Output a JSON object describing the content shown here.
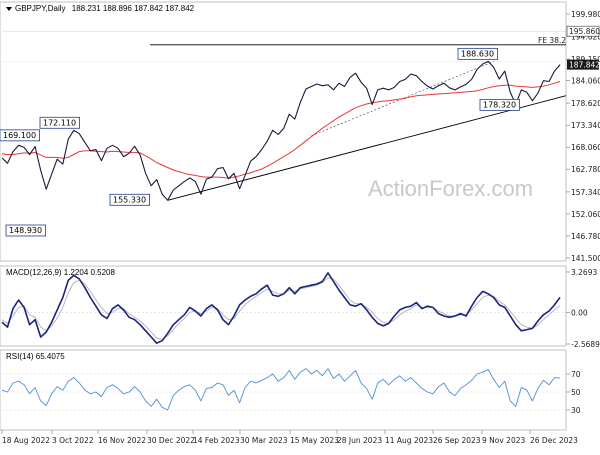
{
  "header": {
    "symbol": "GBPJPY,Daily",
    "ohlc": "188.231 188.896 187.842 187.842"
  },
  "watermark": "ActionForex.com",
  "colors": {
    "price": "#1a1a3a",
    "ema": "#e53935",
    "trend": "#000000",
    "fe": "#000000",
    "macd": "#1a237e",
    "signal": "#b0b0b0",
    "rsi": "#4e8fd6",
    "label_border": "#1f3f8f",
    "last_price_bg": "#1a1a1a"
  },
  "x_ticks": [
    "18 Aug 2022",
    "3 Oct 2022",
    "16 Nov 2022",
    "30 Dec 2022",
    "14 Feb 2023",
    "30 Mar 2023",
    "15 May 2023",
    "28 Jun 2023",
    "11 Aug 2023",
    "26 Sep 2023",
    "9 Nov 2023",
    "26 Dec 2023"
  ],
  "price_axis": {
    "ticks": [
      "199.980",
      "194.620",
      "189.150",
      "184.060",
      "178.620",
      "173.340",
      "168.060",
      "162.780",
      "157.340",
      "152.060",
      "146.780",
      "141.500"
    ],
    "last_price_label": "187.842",
    "resistance_label": "195.860"
  },
  "annotations": {
    "fe_label": "FE 38.2",
    "labels": [
      "188.630",
      "178.320",
      "172.110",
      "169.100",
      "155.330",
      "148.930"
    ]
  },
  "macd_panel": {
    "label": "MACD(12,26,9) 1.2204 0.5208",
    "ticks": [
      "3.2693",
      "0.00",
      "-2.5689"
    ]
  },
  "rsi_panel": {
    "label": "RSI(14) 65.4075",
    "ticks": [
      "70",
      "50",
      "30"
    ]
  },
  "chart_data": {
    "type": "line",
    "title": "GBPJPY,Daily",
    "x_labels": [
      "18 Aug 2022",
      "3 Oct 2022",
      "16 Nov 2022",
      "30 Dec 2022",
      "14 Feb 2023",
      "30 Mar 2023",
      "15 May 2023",
      "28 Jun 2023",
      "11 Aug 2023",
      "26 Sep 2023",
      "9 Nov 2023",
      "26 Dec 2023"
    ],
    "ylim": [
      141.5,
      199.98
    ],
    "series": [
      {
        "values": [
          165.5,
          164.2,
          167.0,
          168.5,
          168.0,
          166.3,
          168.2,
          162.5,
          158.0,
          161.6,
          165.2,
          164.0,
          170.0,
          172.1,
          171.3,
          169.2,
          167.2,
          167.5,
          164.8,
          167.8,
          168.5,
          167.8,
          165.8,
          166.6,
          168.3,
          166.2,
          161.8,
          158.8,
          160.3,
          156.8,
          155.33,
          157.8,
          158.8,
          159.8,
          160.7,
          159.8,
          156.8,
          160.4,
          160.9,
          162.9,
          163.2,
          160.5,
          161.8,
          158.1,
          161.3,
          164.7,
          165.8,
          167.5,
          169.5,
          172.1,
          171.1,
          172.6,
          176.0,
          174.8,
          178.8,
          182.0,
          182.6,
          183.2,
          182.8,
          183.0,
          181.8,
          183.4,
          182.6,
          184.8,
          185.8,
          183.6,
          182.2,
          178.3,
          181.8,
          182.2,
          181.8,
          182.4,
          183.8,
          184.3,
          185.6,
          185.2,
          183.8,
          182.7,
          182.0,
          182.8,
          183.4,
          182.3,
          181.8,
          182.5,
          183.1,
          184.3,
          186.7,
          188.0,
          188.63,
          187.2,
          184.4,
          186.3,
          181.2,
          178.32,
          181.8,
          181.2,
          179.2,
          181.0,
          184.0,
          183.8,
          186.3,
          187.842
        ]
      },
      {
        "values": [
          166.5,
          166.3,
          166.3,
          166.5,
          166.7,
          166.6,
          166.8,
          166.2,
          165.6,
          165.6,
          165.6,
          165.4,
          165.6,
          166.3,
          167.0,
          167.2,
          167.2,
          167.1,
          167.0,
          166.9,
          167.1,
          167.0,
          166.9,
          166.8,
          166.8,
          166.7,
          166.0,
          165.2,
          164.4,
          163.8,
          163.2,
          162.6,
          162.2,
          161.8,
          161.5,
          161.3,
          161.0,
          160.9,
          160.9,
          160.9,
          160.8,
          160.6,
          160.9,
          161.2,
          161.6,
          161.9,
          162.4,
          162.8,
          163.5,
          164.2,
          165.0,
          165.8,
          166.6,
          167.5,
          168.5,
          169.6,
          170.6,
          171.6,
          172.6,
          173.5,
          174.4,
          175.3,
          176.0,
          176.8,
          177.5,
          178.0,
          178.4,
          178.7,
          178.9,
          179.1,
          179.2,
          179.4,
          179.6,
          179.8,
          180.1,
          180.4,
          180.5,
          180.6,
          180.7,
          180.8,
          180.9,
          181.0,
          181.1,
          181.2,
          181.3,
          181.4,
          181.6,
          181.9,
          182.3,
          182.6,
          182.8,
          182.9,
          182.9,
          182.7,
          182.6,
          182.5,
          182.4,
          182.5,
          182.7,
          183.0,
          183.4,
          183.8
        ]
      }
    ],
    "fe_line_price": 192.6,
    "resistance_price": 195.86,
    "trendline": {
      "start_price": 155.33,
      "end_price": 180.4
    },
    "macd": {
      "range": [
        -2.5689,
        3.2693
      ],
      "macd": [
        -0.8,
        -1.2,
        0.3,
        1.0,
        0.4,
        -1.0,
        -0.6,
        -2.0,
        -1.6,
        -0.8,
        0.2,
        1.2,
        2.6,
        3.0,
        2.7,
        2.0,
        1.2,
        0.5,
        -0.2,
        -0.5,
        0.3,
        0.6,
        0.2,
        -0.4,
        -0.6,
        -1.0,
        -1.5,
        -2.0,
        -2.5,
        -2.3,
        -1.7,
        -1.0,
        -0.6,
        -0.2,
        0.4,
        0.1,
        -0.3,
        0.3,
        0.6,
        0.2,
        -0.6,
        -1.0,
        -0.3,
        0.6,
        1.0,
        1.3,
        1.5,
        1.9,
        2.2,
        1.4,
        1.3,
        1.5,
        2.0,
        1.5,
        2.0,
        2.1,
        2.2,
        2.3,
        2.5,
        3.2,
        2.5,
        1.8,
        1.2,
        0.6,
        0.5,
        0.7,
        0.2,
        -0.4,
        -0.9,
        -1.1,
        -0.9,
        -0.3,
        0.2,
        0.4,
        0.5,
        0.8,
        0.3,
        0.5,
        0.4,
        -0.1,
        -0.3,
        -0.4,
        -0.3,
        -0.1,
        -0.3,
        0.5,
        1.2,
        1.7,
        1.5,
        1.2,
        0.6,
        0.4,
        -0.3,
        -1.0,
        -1.5,
        -1.4,
        -1.3,
        -0.7,
        -0.2,
        0.1,
        0.6,
        1.22
      ],
      "signal": [
        -0.6,
        -0.9,
        -0.3,
        0.4,
        0.5,
        -0.2,
        -0.4,
        -1.2,
        -1.5,
        -1.1,
        -0.5,
        0.4,
        1.6,
        2.4,
        2.6,
        2.3,
        1.7,
        1.0,
        0.4,
        -0.1,
        0.0,
        0.3,
        0.3,
        -0.1,
        -0.4,
        -0.7,
        -1.1,
        -1.6,
        -2.1,
        -2.2,
        -1.9,
        -1.4,
        -0.9,
        -0.5,
        0.0,
        0.1,
        -0.1,
        0.1,
        0.4,
        0.3,
        -0.2,
        -0.6,
        -0.5,
        0.1,
        0.6,
        1.0,
        1.3,
        1.6,
        1.9,
        1.7,
        1.5,
        1.5,
        1.8,
        1.7,
        1.9,
        2.0,
        2.1,
        2.2,
        2.4,
        2.8,
        2.7,
        2.2,
        1.6,
        1.0,
        0.7,
        0.7,
        0.4,
        0.0,
        -0.5,
        -0.8,
        -0.9,
        -0.6,
        -0.2,
        0.1,
        0.3,
        0.6,
        0.4,
        0.4,
        0.4,
        0.1,
        -0.1,
        -0.3,
        -0.3,
        -0.2,
        -0.2,
        0.2,
        0.7,
        1.2,
        1.4,
        1.3,
        0.9,
        0.6,
        0.1,
        -0.5,
        -1.0,
        -1.2,
        -1.3,
        -1.0,
        -0.6,
        -0.2,
        0.2,
        0.52
      ]
    },
    "rsi": {
      "range": [
        0,
        100
      ],
      "values": [
        52,
        50,
        60,
        62,
        58,
        48,
        55,
        40,
        35,
        48,
        56,
        52,
        62,
        66,
        60,
        52,
        48,
        50,
        45,
        55,
        58,
        54,
        48,
        50,
        56,
        50,
        40,
        34,
        42,
        33,
        30,
        46,
        52,
        56,
        58,
        52,
        40,
        54,
        55,
        60,
        58,
        46,
        52,
        38,
        55,
        62,
        60,
        63,
        66,
        70,
        62,
        66,
        74,
        64,
        72,
        76,
        70,
        74,
        68,
        76,
        65,
        70,
        62,
        68,
        74,
        60,
        54,
        42,
        60,
        64,
        58,
        64,
        68,
        62,
        66,
        60,
        54,
        50,
        48,
        56,
        60,
        50,
        46,
        54,
        58,
        63,
        70,
        72,
        75,
        64,
        55,
        62,
        40,
        34,
        55,
        52,
        40,
        54,
        63,
        58,
        66,
        65.4
      ]
    }
  }
}
